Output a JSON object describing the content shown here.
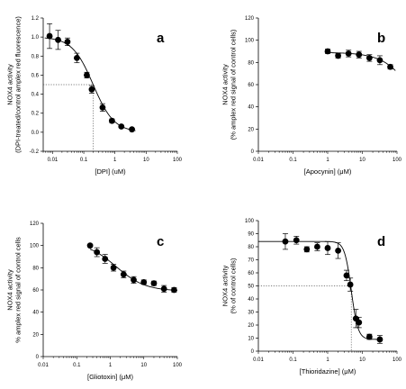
{
  "chart_data": [
    {
      "type": "scatter",
      "panel_letter": "a",
      "xlabel": "[DPI] (uM)",
      "ylabel_lines": [
        "NOX4 activity",
        "(DPI-treated/control amplex red fluorescence)"
      ],
      "xscale": "log",
      "xlim": [
        0.005,
        100
      ],
      "xticks": [
        0.01,
        0.1,
        1,
        10,
        100
      ],
      "xtick_labels": [
        "0.01",
        "0.1",
        "1",
        "10",
        "100"
      ],
      "ylim": [
        -0.2,
        1.2
      ],
      "yticks": [
        -0.2,
        0.0,
        0.2,
        0.4,
        0.6,
        0.8,
        1.0,
        1.2
      ],
      "ytick_labels": [
        "-0.2",
        "0.0",
        "0.2",
        "0.4",
        "0.6",
        "0.8",
        "1.0",
        "1.2"
      ],
      "x": [
        0.008,
        0.015,
        0.03,
        0.06,
        0.125,
        0.18,
        0.4,
        0.8,
        1.6,
        3.5
      ],
      "y": [
        1.01,
        0.97,
        0.95,
        0.78,
        0.6,
        0.45,
        0.26,
        0.12,
        0.06,
        0.03
      ],
      "err": [
        0.13,
        0.1,
        0.04,
        0.05,
        0.03,
        0.04,
        0.04,
        0.02,
        0.01,
        0.01
      ],
      "fit": {
        "top": 1.0,
        "bottom": 0.0,
        "ec50": 0.2,
        "hill": 1.3
      },
      "ref": {
        "x": 0.2,
        "y": 0.5
      }
    },
    {
      "type": "scatter",
      "panel_letter": "b",
      "xlabel": "[Apocynin] (μM)",
      "ylabel_lines": [
        "NOX4 activity",
        "(% amplex red signal of control cells)"
      ],
      "xscale": "log",
      "xlim": [
        0.01,
        100
      ],
      "xticks": [
        0.01,
        0.1,
        1,
        10,
        100
      ],
      "xtick_labels": [
        "0.01",
        "0.1",
        "1",
        "10",
        "100"
      ],
      "ylim": [
        0,
        120
      ],
      "yticks": [
        0,
        20,
        40,
        60,
        80,
        100,
        120
      ],
      "ytick_labels": [
        "0",
        "20",
        "40",
        "60",
        "80",
        "100",
        "120"
      ],
      "x": [
        1,
        2,
        4,
        8,
        16,
        32,
        64
      ],
      "y": [
        90,
        86,
        88,
        87,
        84,
        82,
        76
      ],
      "err": [
        2,
        2,
        3,
        3,
        3,
        4,
        2
      ],
      "fit": {
        "top": 89,
        "bottom": 0,
        "ec50": 400,
        "hill": 1.0
      },
      "fit_range": [
        1,
        90
      ]
    },
    {
      "type": "scatter",
      "panel_letter": "c",
      "xlabel": "[Gliotoxin] (μM)",
      "ylabel_lines": [
        "NOX4 activity",
        "% amplex red signal of control cells"
      ],
      "xscale": "log",
      "xlim": [
        0.01,
        100
      ],
      "xticks": [
        0.01,
        0.1,
        1,
        10,
        100
      ],
      "xtick_labels": [
        "0.01",
        "0.1",
        "1",
        "10",
        "100"
      ],
      "ylim": [
        0,
        120
      ],
      "yticks": [
        0,
        20,
        40,
        60,
        80,
        100,
        120
      ],
      "ytick_labels": [
        "0",
        "20",
        "40",
        "60",
        "80",
        "100",
        "120"
      ],
      "x": [
        0.25,
        0.4,
        0.7,
        1.25,
        2.5,
        5,
        10,
        20,
        40,
        80
      ],
      "y": [
        100,
        94,
        88,
        80,
        74,
        69,
        67,
        66,
        61,
        60
      ],
      "err": [
        1,
        4,
        4,
        3,
        3,
        3,
        2,
        2,
        3,
        2
      ],
      "fit": {
        "top": 103,
        "bottom": 59,
        "ec50": 1.5,
        "hill": 1.0
      },
      "fit_range": [
        0.25,
        100
      ]
    },
    {
      "type": "scatter",
      "panel_letter": "d",
      "xlabel": "[Thioridazine] (μM)",
      "ylabel_lines": [
        "NOX4 activity",
        "(% of control cells)"
      ],
      "xscale": "log",
      "xlim": [
        0.01,
        100
      ],
      "xticks": [
        0.01,
        0.1,
        1,
        10,
        100
      ],
      "xtick_labels": [
        "0.01",
        "0.1",
        "1",
        "10",
        "100"
      ],
      "ylim": [
        0,
        100
      ],
      "yticks": [
        0,
        10,
        20,
        30,
        40,
        50,
        60,
        70,
        80,
        90,
        100
      ],
      "ytick_labels": [
        "0",
        "10",
        "20",
        "30",
        "40",
        "50",
        "60",
        "70",
        "80",
        "90",
        "100"
      ],
      "x": [
        0.06,
        0.125,
        0.25,
        0.5,
        1,
        2,
        3.5,
        4.5,
        6.5,
        8,
        16,
        32
      ],
      "y": [
        84,
        85,
        78,
        80,
        79,
        77,
        58,
        51,
        25,
        22,
        11,
        9
      ],
      "err": [
        6,
        3,
        2,
        3,
        5,
        6,
        4,
        5,
        7,
        4,
        2,
        3
      ],
      "fit": {
        "top": 84,
        "bottom": 9,
        "ec50": 4.8,
        "hill": 4.5
      },
      "fit_range": [
        0.01,
        32
      ],
      "ref": {
        "x": 4.8,
        "y": 50
      }
    }
  ]
}
